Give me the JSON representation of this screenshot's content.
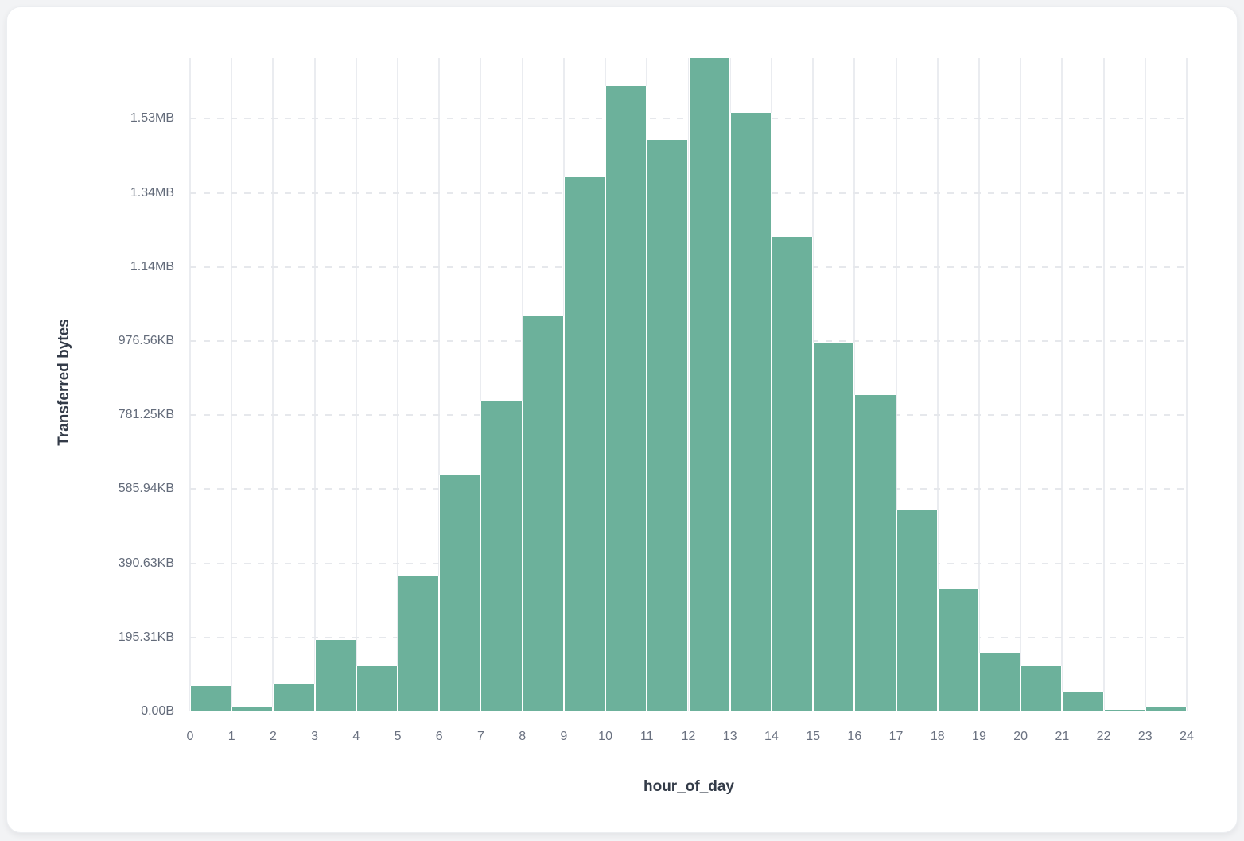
{
  "page": {
    "background_color": "#f2f3f5",
    "card_background_color": "#ffffff"
  },
  "chart_data": {
    "type": "bar",
    "title": "",
    "xlabel": "hour_of_day",
    "ylabel": "Transferred bytes",
    "categories": [
      0,
      1,
      2,
      3,
      4,
      5,
      6,
      7,
      8,
      9,
      10,
      11,
      12,
      13,
      14,
      15,
      16,
      17,
      18,
      19,
      20,
      21,
      22,
      23
    ],
    "values": [
      69000,
      11000,
      73000,
      193000,
      122000,
      365000,
      640000,
      837000,
      1067000,
      1442000,
      1689000,
      1543000,
      1764000,
      1616000,
      1281000,
      996000,
      854000,
      545000,
      330000,
      157000,
      122000,
      52000,
      3500,
      10000
    ],
    "values_unit": "bytes",
    "x_tick_labels": [
      "0",
      "1",
      "2",
      "3",
      "4",
      "5",
      "6",
      "7",
      "8",
      "9",
      "10",
      "11",
      "12",
      "13",
      "14",
      "15",
      "16",
      "17",
      "18",
      "19",
      "20",
      "21",
      "22",
      "23",
      "24"
    ],
    "y_tick_labels": [
      "0.00B",
      "195.31KB",
      "390.63KB",
      "585.94KB",
      "781.25KB",
      "976.56KB",
      "1.14MB",
      "1.34MB",
      "1.53MB"
    ],
    "y_tick_bytes": [
      0,
      200000,
      400000,
      600000,
      800000,
      1000000,
      1200000,
      1400000,
      1600000
    ],
    "ylim": [
      0,
      1764000
    ],
    "grid": "on",
    "legend": "none",
    "bar_color": "#6cb19b",
    "grid_color": "#eaecf0",
    "tick_label_color": "#6a7180",
    "axis_title_color": "#333b48"
  }
}
